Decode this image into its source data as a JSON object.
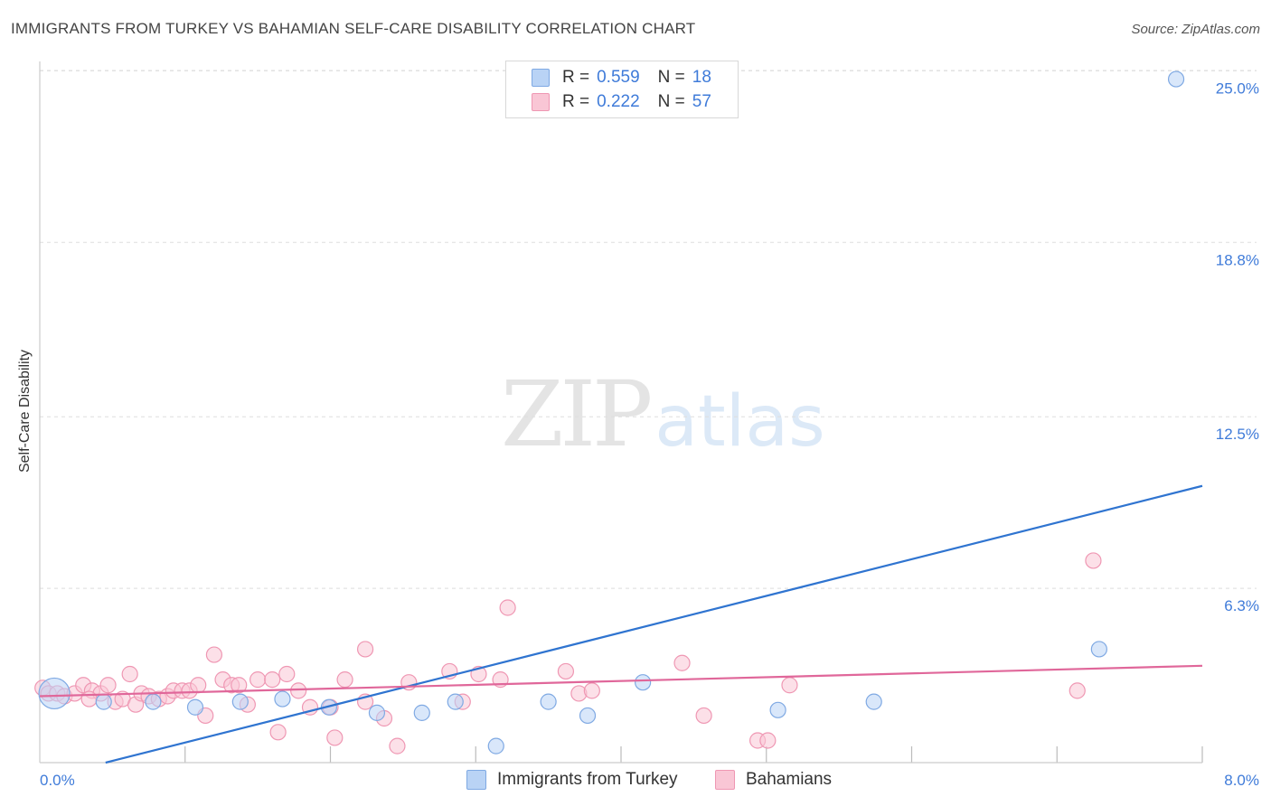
{
  "header": {
    "title": "IMMIGRANTS FROM TURKEY VS BAHAMIAN SELF-CARE DISABILITY CORRELATION CHART",
    "source": "Source: ZipAtlas.com"
  },
  "watermark": {
    "zip": "ZIP",
    "atlas": "atlas"
  },
  "legend": {
    "r_label": "R =",
    "n_label": "N =",
    "rows": [
      {
        "r": "0.559",
        "n": "18",
        "color": "#a9c8f0"
      },
      {
        "r": "0.222",
        "n": "57",
        "color": "#f7b9cc"
      }
    ]
  },
  "colors": {
    "blue_fill": "#b9d3f5",
    "blue_stroke": "#7fa9e3",
    "blue_line": "#2f74d0",
    "pink_fill": "#f9c6d5",
    "pink_stroke": "#ef97b3",
    "pink_line": "#e0679a",
    "tick_label": "#3f7bd9"
  },
  "chart_data": {
    "type": "scatter",
    "title": "IMMIGRANTS FROM TURKEY VS BAHAMIAN SELF-CARE DISABILITY CORRELATION CHART",
    "xlabel": "",
    "ylabel": "Self-Care Disability",
    "xlim": [
      0,
      8
    ],
    "ylim": [
      0,
      25.6
    ],
    "x_ticks": [
      "0.0%",
      "8.0%"
    ],
    "y_ticks": [
      {
        "value": 6.3,
        "label": "6.3%"
      },
      {
        "value": 12.5,
        "label": "12.5%"
      },
      {
        "value": 18.8,
        "label": "18.8%"
      },
      {
        "value": 25.0,
        "label": "25.0%"
      }
    ],
    "grid": true,
    "legend_position": "top-center",
    "series": [
      {
        "name": "Immigrants from Turkey",
        "color": "blue",
        "points": [
          {
            "x": 0.1,
            "y": 2.5,
            "big": true
          },
          {
            "x": 0.44,
            "y": 2.2
          },
          {
            "x": 0.78,
            "y": 2.2
          },
          {
            "x": 1.07,
            "y": 2.0
          },
          {
            "x": 1.38,
            "y": 2.2
          },
          {
            "x": 1.67,
            "y": 2.3
          },
          {
            "x": 1.99,
            "y": 2.0
          },
          {
            "x": 2.32,
            "y": 1.8
          },
          {
            "x": 2.63,
            "y": 1.8
          },
          {
            "x": 2.86,
            "y": 2.2
          },
          {
            "x": 3.14,
            "y": 0.6
          },
          {
            "x": 3.5,
            "y": 2.2
          },
          {
            "x": 3.77,
            "y": 1.7
          },
          {
            "x": 4.15,
            "y": 2.9
          },
          {
            "x": 5.08,
            "y": 1.9
          },
          {
            "x": 5.74,
            "y": 2.2
          },
          {
            "x": 7.29,
            "y": 4.1
          },
          {
            "x": 7.82,
            "y": 24.7
          }
        ],
        "trend": {
          "x": [
            0.0,
            8.0
          ],
          "y": [
            -0.6,
            10.0
          ]
        }
      },
      {
        "name": "Bahamians",
        "color": "pink",
        "points": [
          {
            "x": 0.02,
            "y": 2.7
          },
          {
            "x": 0.06,
            "y": 2.5
          },
          {
            "x": 0.12,
            "y": 2.5
          },
          {
            "x": 0.17,
            "y": 2.4
          },
          {
            "x": 0.24,
            "y": 2.5
          },
          {
            "x": 0.3,
            "y": 2.8
          },
          {
            "x": 0.36,
            "y": 2.6
          },
          {
            "x": 0.42,
            "y": 2.5
          },
          {
            "x": 0.47,
            "y": 2.8
          },
          {
            "x": 0.52,
            "y": 2.2
          },
          {
            "x": 0.57,
            "y": 2.3
          },
          {
            "x": 0.62,
            "y": 3.2
          },
          {
            "x": 0.66,
            "y": 2.1
          },
          {
            "x": 0.7,
            "y": 2.5
          },
          {
            "x": 0.75,
            "y": 2.4
          },
          {
            "x": 0.82,
            "y": 2.3
          },
          {
            "x": 0.88,
            "y": 2.4
          },
          {
            "x": 0.92,
            "y": 2.6
          },
          {
            "x": 0.98,
            "y": 2.6
          },
          {
            "x": 1.03,
            "y": 2.6
          },
          {
            "x": 1.09,
            "y": 2.8
          },
          {
            "x": 1.14,
            "y": 1.7
          },
          {
            "x": 1.2,
            "y": 3.9
          },
          {
            "x": 1.26,
            "y": 3.0
          },
          {
            "x": 1.32,
            "y": 2.8
          },
          {
            "x": 1.37,
            "y": 2.8
          },
          {
            "x": 1.43,
            "y": 2.1
          },
          {
            "x": 1.5,
            "y": 3.0
          },
          {
            "x": 1.6,
            "y": 3.0
          },
          {
            "x": 1.64,
            "y": 1.1
          },
          {
            "x": 1.7,
            "y": 3.2
          },
          {
            "x": 1.78,
            "y": 2.6
          },
          {
            "x": 1.86,
            "y": 2.0
          },
          {
            "x": 2.0,
            "y": 2.0
          },
          {
            "x": 2.03,
            "y": 0.9
          },
          {
            "x": 2.1,
            "y": 3.0
          },
          {
            "x": 2.24,
            "y": 4.1
          },
          {
            "x": 2.37,
            "y": 1.6
          },
          {
            "x": 2.46,
            "y": 0.6
          },
          {
            "x": 2.54,
            "y": 2.9
          },
          {
            "x": 2.82,
            "y": 3.3
          },
          {
            "x": 2.91,
            "y": 2.2
          },
          {
            "x": 3.02,
            "y": 3.2
          },
          {
            "x": 3.17,
            "y": 3.0
          },
          {
            "x": 3.22,
            "y": 5.6
          },
          {
            "x": 3.62,
            "y": 3.3
          },
          {
            "x": 3.71,
            "y": 2.5
          },
          {
            "x": 3.8,
            "y": 2.6
          },
          {
            "x": 4.42,
            "y": 3.6
          },
          {
            "x": 4.57,
            "y": 1.7
          },
          {
            "x": 4.94,
            "y": 0.8
          },
          {
            "x": 5.01,
            "y": 0.8
          },
          {
            "x": 5.16,
            "y": 2.8
          },
          {
            "x": 7.14,
            "y": 2.6
          },
          {
            "x": 7.25,
            "y": 7.3
          },
          {
            "x": 2.24,
            "y": 2.2
          },
          {
            "x": 0.34,
            "y": 2.3
          }
        ],
        "trend": {
          "x": [
            0.0,
            8.0
          ],
          "y": [
            2.4,
            3.5
          ]
        }
      }
    ]
  }
}
